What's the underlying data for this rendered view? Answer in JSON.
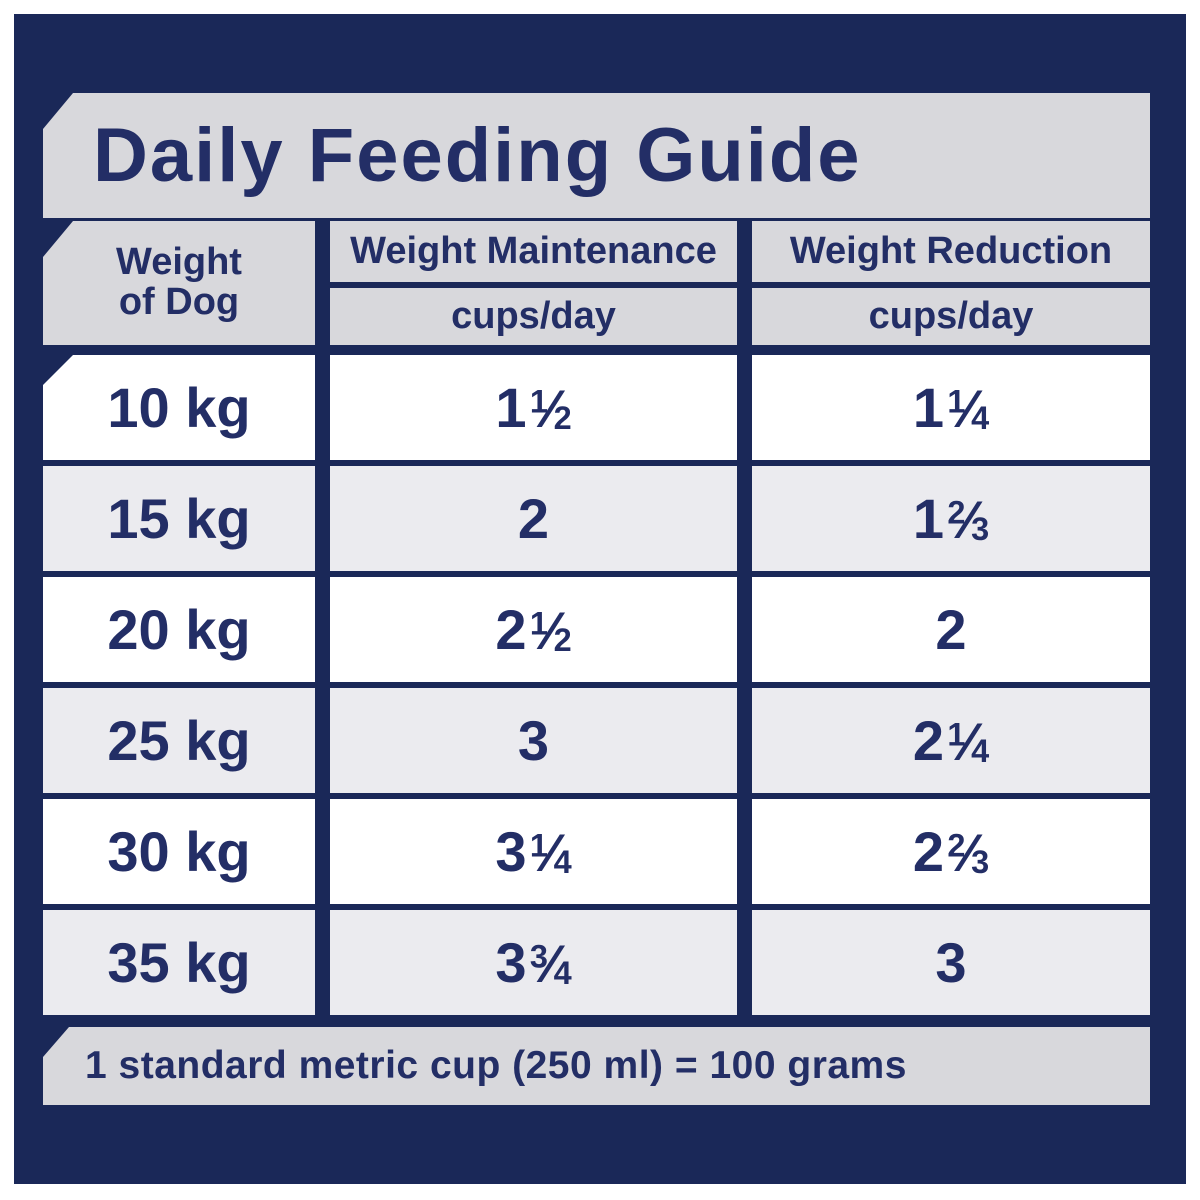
{
  "title": "Daily Feeding Guide",
  "colors": {
    "panel_navy": "#1a2858",
    "text_navy": "#232e66",
    "header_band_gray": "#d8d8dc",
    "alt_row_gray": "#ebebef",
    "row_white": "#ffffff",
    "outer_border_white": "#ffffff"
  },
  "table": {
    "weight_header": {
      "line1": "Weight",
      "line2": "of Dog"
    },
    "columns": [
      {
        "label": "Weight Maintenance",
        "sublabel": "cups/day"
      },
      {
        "label": "Weight Reduction",
        "sublabel": "cups/day"
      }
    ],
    "rows": [
      {
        "weight": "10 kg",
        "maintenance": "1 ½",
        "reduction": "1 ¼"
      },
      {
        "weight": "15 kg",
        "maintenance": "2",
        "reduction": "1 ⅔"
      },
      {
        "weight": "20 kg",
        "maintenance": "2 ½",
        "reduction": "2"
      },
      {
        "weight": "25 kg",
        "maintenance": "3",
        "reduction": "2 ¼"
      },
      {
        "weight": "30 kg",
        "maintenance": "3 ¼",
        "reduction": "2 ⅔"
      },
      {
        "weight": "35 kg",
        "maintenance": "3 ¾",
        "reduction": "3"
      }
    ]
  },
  "footer": {
    "note": "1 standard metric cup (250 ml) = 100 grams"
  }
}
